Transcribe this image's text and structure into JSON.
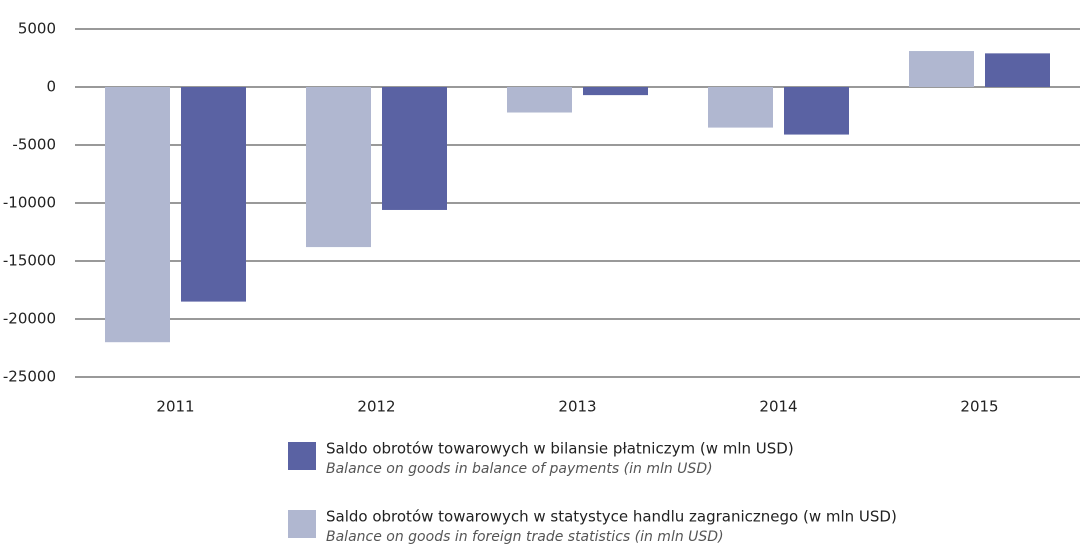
{
  "chart_data": {
    "type": "bar",
    "categories": [
      "2011",
      "2012",
      "2013",
      "2014",
      "2015"
    ],
    "series": [
      {
        "name": "Saldo obrotów towarowych w statystyce handlu zagranicznego (w mln USD)",
        "name_en": "Balance on goods in foreign trade statistics (in mln USD)",
        "color": "#b0b7d0",
        "values": [
          -22000,
          -13800,
          -2200,
          -3500,
          3100
        ]
      },
      {
        "name": "Saldo obrotów towarowych w bilansie płatniczym (w mln USD)",
        "name_en": "Balance on goods in balance of payments (in mln USD)",
        "color": "#5a62a3",
        "values": [
          -18500,
          -10600,
          -700,
          -4100,
          2900
        ]
      }
    ],
    "ylim": [
      -25000,
      5000
    ],
    "yticks": [
      -25000,
      -20000,
      -15000,
      -10000,
      -5000,
      0,
      5000
    ],
    "grid": true
  }
}
